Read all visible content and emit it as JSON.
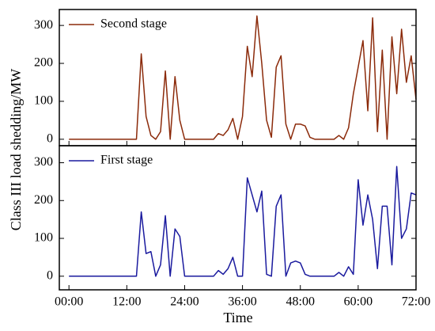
{
  "chart_data": [
    {
      "type": "line",
      "ylabel": "Class III load shedding/MW",
      "x": [
        0,
        1,
        2,
        3,
        4,
        5,
        6,
        7,
        8,
        9,
        10,
        11,
        12,
        13,
        14,
        15,
        16,
        17,
        18,
        19,
        20,
        21,
        22,
        23,
        24,
        25,
        26,
        27,
        28,
        29,
        30,
        31,
        32,
        33,
        34,
        35,
        36,
        37,
        38,
        39,
        40,
        41,
        42,
        43,
        44,
        45,
        46,
        47,
        48,
        49,
        50,
        51,
        52,
        53,
        54,
        55,
        56,
        57,
        58,
        59,
        60,
        61,
        62,
        63,
        64,
        65,
        66,
        67,
        68,
        69,
        70,
        71,
        72
      ],
      "series": [
        {
          "name": "Second stage",
          "color": "#8b2a0a",
          "values": [
            0,
            0,
            0,
            0,
            0,
            0,
            0,
            0,
            0,
            0,
            0,
            0,
            0,
            0,
            0,
            225,
            60,
            10,
            0,
            20,
            180,
            0,
            165,
            50,
            0,
            0,
            0,
            0,
            0,
            0,
            0,
            15,
            10,
            25,
            55,
            0,
            60,
            245,
            165,
            325,
            200,
            50,
            5,
            190,
            220,
            40,
            0,
            40,
            40,
            35,
            5,
            0,
            0,
            0,
            0,
            0,
            10,
            0,
            30,
            120,
            190,
            260,
            75,
            320,
            20,
            235,
            0,
            270,
            120,
            290,
            150,
            220,
            105
          ]
        }
      ],
      "xlim": [
        -2,
        72
      ],
      "ylim": [
        -17,
        342
      ],
      "yticks": [
        0,
        100,
        200,
        300
      ]
    },
    {
      "type": "line",
      "xlabel": "Time",
      "x": [
        0,
        1,
        2,
        3,
        4,
        5,
        6,
        7,
        8,
        9,
        10,
        11,
        12,
        13,
        14,
        15,
        16,
        17,
        18,
        19,
        20,
        21,
        22,
        23,
        24,
        25,
        26,
        27,
        28,
        29,
        30,
        31,
        32,
        33,
        34,
        35,
        36,
        37,
        38,
        39,
        40,
        41,
        42,
        43,
        44,
        45,
        46,
        47,
        48,
        49,
        50,
        51,
        52,
        53,
        54,
        55,
        56,
        57,
        58,
        59,
        60,
        61,
        62,
        63,
        64,
        65,
        66,
        67,
        68,
        69,
        70,
        71,
        72
      ],
      "series": [
        {
          "name": "First stage",
          "color": "#1a1a9e",
          "values": [
            0,
            0,
            0,
            0,
            0,
            0,
            0,
            0,
            0,
            0,
            0,
            0,
            0,
            0,
            0,
            170,
            60,
            65,
            0,
            30,
            160,
            0,
            125,
            105,
            0,
            0,
            0,
            0,
            0,
            0,
            0,
            15,
            5,
            20,
            50,
            0,
            0,
            260,
            215,
            170,
            225,
            5,
            0,
            185,
            215,
            0,
            35,
            40,
            35,
            5,
            0,
            0,
            0,
            0,
            0,
            0,
            10,
            0,
            25,
            5,
            255,
            135,
            215,
            150,
            20,
            185,
            185,
            30,
            290,
            100,
            125,
            220,
            215
          ]
        }
      ],
      "xlim": [
        -2,
        72
      ],
      "ylim": [
        -36,
        345
      ],
      "yticks": [
        0,
        100,
        200,
        300
      ],
      "xticks": [
        {
          "value": 0,
          "label": "00:00"
        },
        {
          "value": 12,
          "label": "12:00"
        },
        {
          "value": 24,
          "label": "24:00"
        },
        {
          "value": 36,
          "label": "36:00"
        },
        {
          "value": 48,
          "label": "48:00"
        },
        {
          "value": 60,
          "label": "60:00"
        },
        {
          "value": 72,
          "label": "72:00"
        }
      ]
    }
  ]
}
